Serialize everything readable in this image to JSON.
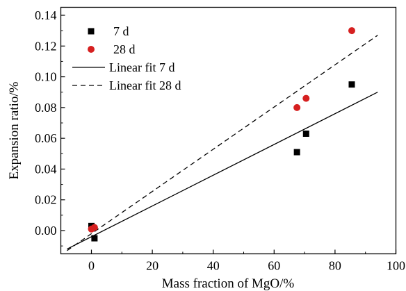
{
  "chart_data": {
    "type": "scatter",
    "xlabel": "Mass fraction of MgO/%",
    "ylabel": "Expansion ratio/%",
    "xlim": [
      -10,
      100
    ],
    "ylim": [
      -0.015,
      0.145
    ],
    "xticks": [
      0,
      20,
      40,
      60,
      80,
      100
    ],
    "xtick_labels": [
      "0",
      "20",
      "40",
      "60",
      "80",
      "100"
    ],
    "yticks": [
      0.0,
      0.02,
      0.04,
      0.06,
      0.08,
      0.1,
      0.12,
      0.14
    ],
    "ytick_labels": [
      "0.00",
      "0.02",
      "0.04",
      "0.06",
      "0.08",
      "0.10",
      "0.12",
      "0.14"
    ],
    "grid": false,
    "legend_position": "top-left",
    "series": [
      {
        "name": "7 d",
        "kind": "scatter",
        "marker": "square",
        "color": "#000000",
        "x": [
          0,
          1,
          67.5,
          70.5,
          85.5
        ],
        "y": [
          0.003,
          -0.005,
          0.051,
          0.063,
          0.095
        ]
      },
      {
        "name": "28 d",
        "kind": "scatter",
        "marker": "circle",
        "color": "#d62020",
        "x": [
          0,
          1,
          67.5,
          70.5,
          85.5
        ],
        "y": [
          0.001,
          0.002,
          0.08,
          0.086,
          0.13
        ]
      },
      {
        "name": "Linear fit 7 d",
        "kind": "line",
        "dash": "solid",
        "color": "#000000",
        "x": [
          -8,
          94
        ],
        "y": [
          -0.012,
          0.09
        ]
      },
      {
        "name": "Linear fit 28 d",
        "kind": "line",
        "dash": "dashed",
        "color": "#000000",
        "x": [
          -8,
          94
        ],
        "y": [
          -0.013,
          0.127
        ]
      }
    ]
  }
}
